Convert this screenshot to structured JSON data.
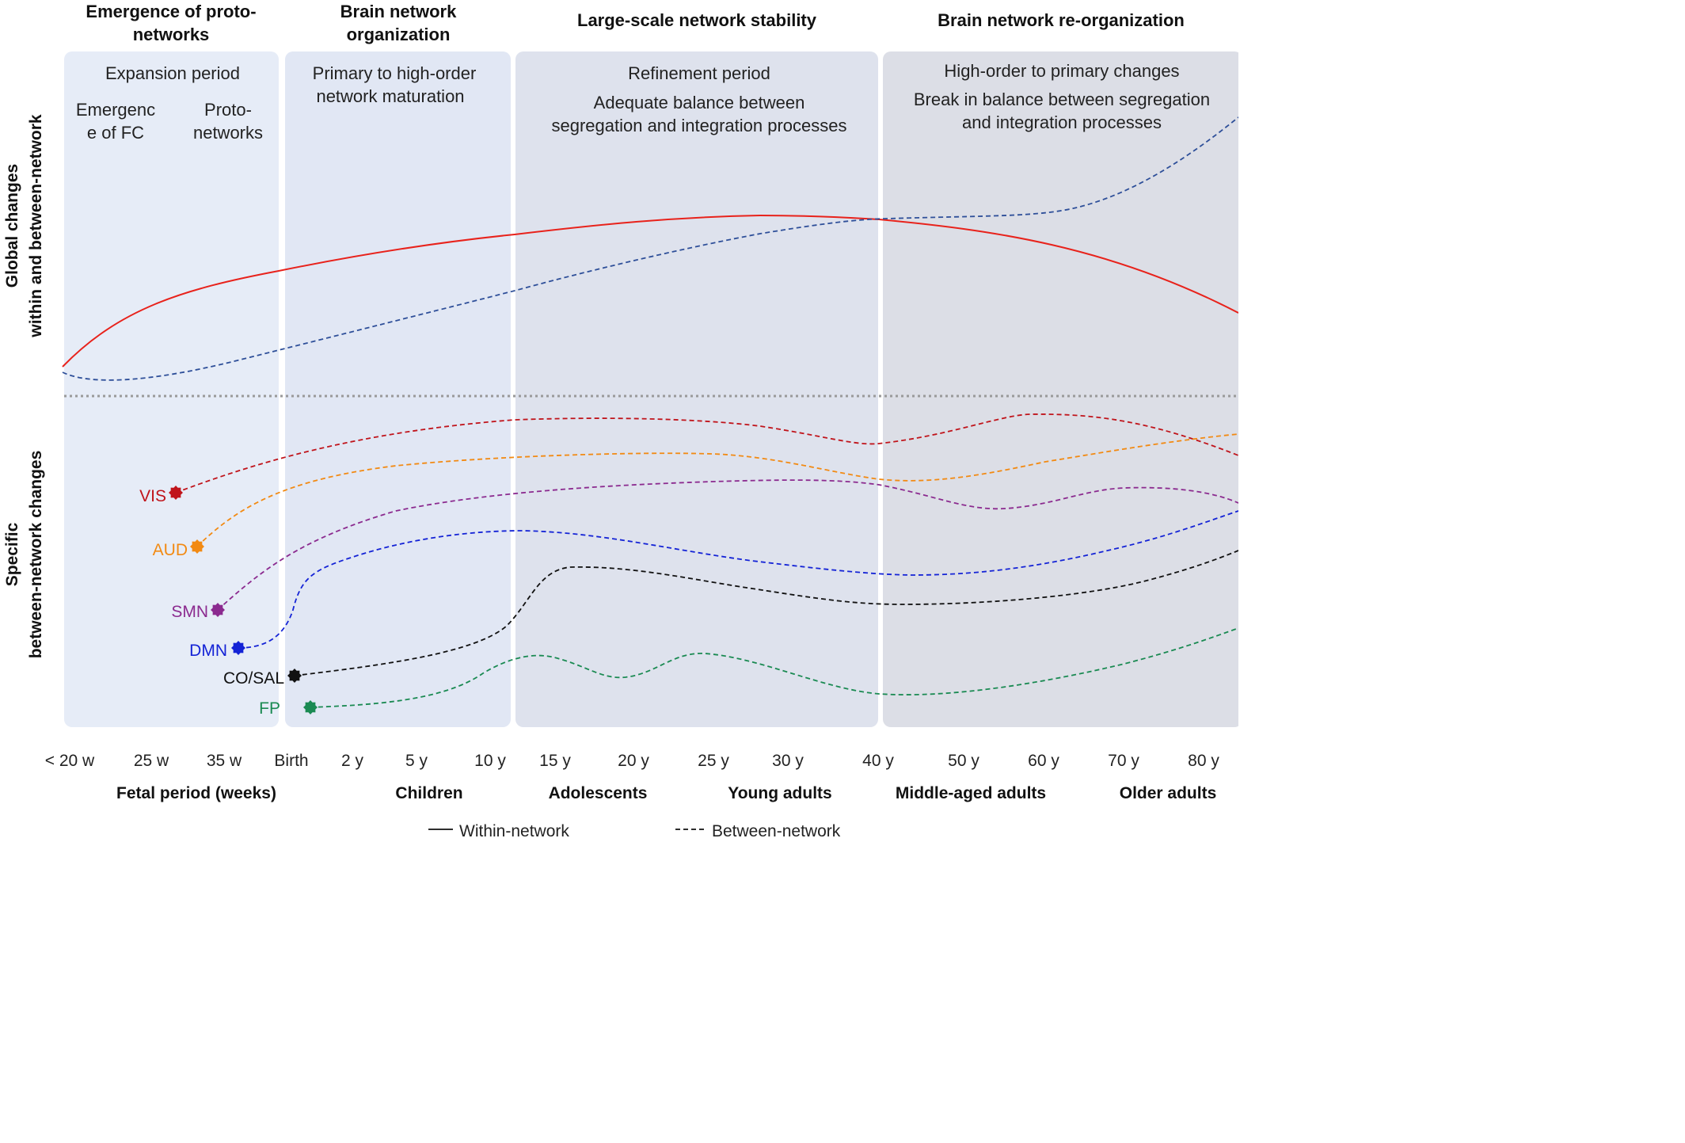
{
  "phases": [
    {
      "header": [
        "Emergence of proto-",
        "networks"
      ],
      "period": "Expansion period",
      "sublabels": [
        [
          "Emergenc",
          "e of FC"
        ],
        [
          "Proto-",
          "networks"
        ]
      ],
      "fill": "#e6ecf7"
    },
    {
      "header": [
        "Brain network",
        "organization"
      ],
      "period_lines": [
        "Primary to high-order",
        "network maturation"
      ],
      "fill": "#e1e7f4"
    },
    {
      "header": [
        "Large-scale network stability"
      ],
      "period": "Refinement period",
      "period_lines": [
        "Adequate balance between",
        "segregation and integration processes"
      ],
      "fill": "#dee2ed"
    },
    {
      "header": [
        "Brain network re-organization"
      ],
      "period": "High-order to primary changes",
      "period_lines": [
        "Break in balance between segregation",
        "and integration processes"
      ],
      "fill": "#dcdee6"
    }
  ],
  "y_axis": {
    "top_label": [
      "Global changes",
      "within and between-network"
    ],
    "bottom_label": [
      "Specific",
      "between-network changes"
    ]
  },
  "x_ticks": [
    "< 20 w",
    "25 w",
    "35 w",
    "Birth",
    "2 y",
    "5 y",
    "10 y",
    "15 y",
    "20 y",
    "25 y",
    "30 y",
    "40 y",
    "50 y",
    "60 y",
    "70 y",
    "80 y"
  ],
  "age_groups": [
    "Fetal period (weeks)",
    "Children",
    "Adolescents",
    "Young adults",
    "Middle-aged adults",
    "Older adults"
  ],
  "legend": {
    "within": "Within-network",
    "between": "Between-network"
  },
  "colors": {
    "within": "#e8221b",
    "between_global": "#2e4f99",
    "divider": "#9a9a9a"
  },
  "networks": [
    {
      "name": "VIS",
      "color": "#c0141b"
    },
    {
      "name": "AUD",
      "color": "#f28a13"
    },
    {
      "name": "SMN",
      "color": "#8b2a8f"
    },
    {
      "name": "DMN",
      "color": "#1423d6"
    },
    {
      "name": "CO/SAL",
      "color": "#111111"
    },
    {
      "name": "FP",
      "color": "#1a8a52"
    }
  ]
}
